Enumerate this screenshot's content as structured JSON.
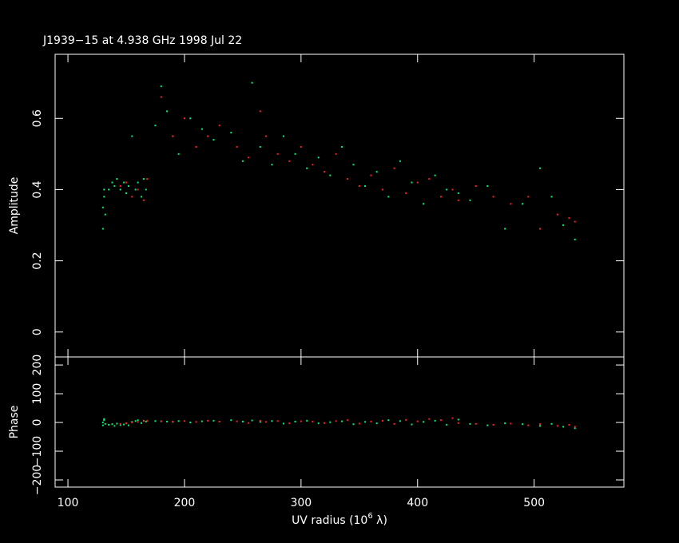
{
  "title": "J1939−15 at 4.938 GHz 1998 Jul 22",
  "chart_data": [
    {
      "type": "scatter",
      "y_label": "Amplitude",
      "xlim": [
        89,
        577
      ],
      "xticks": [
        100,
        200,
        300,
        400,
        500
      ],
      "ylim": [
        -0.07,
        0.78
      ],
      "yticks": [
        0,
        0.2,
        0.4,
        0.6
      ],
      "series": [
        {
          "color": "#00f078",
          "x": [
            130,
            130,
            131,
            131,
            132,
            135,
            138,
            140,
            142,
            145,
            148,
            150,
            152,
            155,
            158,
            160,
            163,
            165,
            167,
            175,
            180,
            185,
            190,
            195,
            205,
            215,
            225,
            240,
            250,
            258,
            265,
            275,
            285,
            295,
            305,
            315,
            325,
            335,
            345,
            355,
            365,
            375,
            385,
            395,
            405,
            415,
            425,
            435,
            445,
            460,
            475,
            490,
            505,
            515,
            525,
            535
          ],
          "values": [
            0.29,
            0.35,
            0.4,
            0.38,
            0.33,
            0.4,
            0.42,
            0.41,
            0.43,
            0.4,
            0.42,
            0.39,
            0.41,
            0.55,
            0.4,
            0.42,
            0.38,
            0.43,
            0.4,
            0.58,
            0.69,
            0.62,
            0.55,
            0.5,
            0.6,
            0.57,
            0.54,
            0.56,
            0.48,
            0.7,
            0.52,
            0.47,
            0.55,
            0.5,
            0.46,
            0.49,
            0.44,
            0.52,
            0.47,
            0.41,
            0.45,
            0.38,
            0.48,
            0.42,
            0.36,
            0.44,
            0.4,
            0.39,
            0.37,
            0.41,
            0.29,
            0.36,
            0.46,
            0.38,
            0.3,
            0.26
          ]
        },
        {
          "color": "#ff1e1e",
          "x": [
            145,
            150,
            155,
            160,
            165,
            168,
            180,
            190,
            200,
            210,
            220,
            230,
            245,
            255,
            265,
            270,
            280,
            290,
            300,
            310,
            320,
            330,
            340,
            350,
            360,
            370,
            380,
            390,
            400,
            410,
            420,
            430,
            435,
            450,
            465,
            480,
            495,
            505,
            520,
            530,
            535
          ],
          "values": [
            0.41,
            0.42,
            0.38,
            0.4,
            0.37,
            0.43,
            0.66,
            0.55,
            0.6,
            0.52,
            0.55,
            0.58,
            0.52,
            0.49,
            0.62,
            0.55,
            0.5,
            0.48,
            0.52,
            0.47,
            0.45,
            0.5,
            0.43,
            0.41,
            0.44,
            0.4,
            0.46,
            0.39,
            0.42,
            0.43,
            0.38,
            0.4,
            0.37,
            0.41,
            0.38,
            0.36,
            0.38,
            0.29,
            0.33,
            0.32,
            0.31
          ]
        }
      ]
    },
    {
      "type": "scatter",
      "y_label": "Phase",
      "x_label": {
        "base": "UV radius  (10",
        "superscript": "6",
        "tail": " λ)"
      },
      "xlim": [
        89,
        577
      ],
      "xticks": [
        100,
        200,
        300,
        400,
        500
      ],
      "ylim": [
        -225,
        228
      ],
      "yticks": [
        {
          "value": -200,
          "label": "−200"
        },
        {
          "value": -100,
          "label": "−100"
        },
        0,
        100,
        200
      ],
      "series": [
        {
          "color": "#00f078",
          "x": [
            130,
            130,
            131,
            131,
            132,
            135,
            138,
            140,
            142,
            145,
            148,
            150,
            152,
            155,
            158,
            160,
            163,
            165,
            167,
            175,
            180,
            185,
            190,
            195,
            205,
            215,
            225,
            240,
            250,
            258,
            265,
            275,
            285,
            295,
            305,
            315,
            325,
            335,
            345,
            355,
            365,
            375,
            385,
            395,
            405,
            415,
            425,
            435,
            445,
            460,
            475,
            490,
            505,
            515,
            525,
            535
          ],
          "values": [
            0,
            -10,
            8,
            12,
            -5,
            -8,
            -6,
            -12,
            -4,
            -9,
            -7,
            -3,
            -10,
            2,
            5,
            8,
            -2,
            6,
            3,
            5,
            4,
            3,
            2,
            5,
            0,
            4,
            6,
            8,
            3,
            7,
            2,
            5,
            -4,
            3,
            6,
            -3,
            1,
            4,
            -6,
            2,
            -3,
            8,
            5,
            -7,
            2,
            6,
            -8,
            10,
            -5,
            -10,
            -3,
            -6,
            -12,
            -5,
            -15,
            -20
          ]
        },
        {
          "color": "#ff1e1e",
          "x": [
            145,
            150,
            155,
            160,
            165,
            168,
            180,
            190,
            200,
            210,
            220,
            230,
            245,
            255,
            265,
            270,
            280,
            290,
            300,
            310,
            320,
            330,
            340,
            350,
            360,
            370,
            380,
            390,
            400,
            410,
            420,
            430,
            435,
            450,
            465,
            480,
            495,
            505,
            520,
            530,
            535
          ],
          "values": [
            -5,
            -3,
            0,
            2,
            5,
            6,
            4,
            3,
            5,
            2,
            6,
            3,
            4,
            -2,
            6,
            2,
            5,
            -3,
            4,
            3,
            -2,
            5,
            8,
            -4,
            3,
            6,
            -5,
            9,
            4,
            12,
            8,
            15,
            -2,
            -5,
            -8,
            -4,
            -10,
            -6,
            -12,
            -8,
            -15
          ]
        }
      ]
    }
  ]
}
